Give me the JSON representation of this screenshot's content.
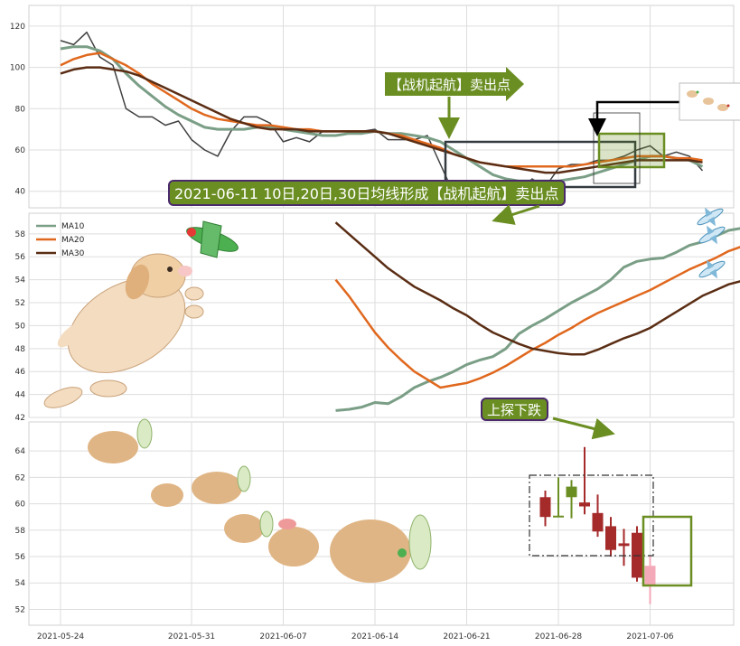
{
  "colors": {
    "ma10": "#7a9e86",
    "ma20": "#e0681e",
    "ma30": "#5a2d14",
    "close": "#404040",
    "callout_fill": "#6b8e23",
    "callout_border": "#4b2a6b",
    "bull": "#6b8e23",
    "bear": "#a52a2a",
    "pink": "#f4a9b8",
    "frame": "#333a40"
  },
  "x_ticks": [
    "2021-05-24",
    "2021-05-31",
    "2021-06-07",
    "2021-06-14",
    "2021-06-21",
    "2021-06-28",
    "2021-07-06"
  ],
  "annotations": {
    "sell_arrow_label": "【战机起航】卖出点",
    "sell_note": "2021-06-11 10日,20日,30日均线形成【战机起航】卖出点",
    "probe_label": "上探下跌"
  },
  "chart_data": [
    {
      "type": "line",
      "panel": "top",
      "x": [
        0,
        1,
        2,
        3,
        4,
        5,
        6,
        7,
        8,
        9,
        10,
        11,
        12,
        13,
        14,
        15,
        16,
        17,
        18,
        19,
        20,
        21,
        22,
        23,
        24,
        25,
        26,
        27,
        28,
        29,
        30,
        31,
        32,
        33,
        34,
        35,
        36,
        37,
        38,
        39,
        40,
        41,
        42,
        43,
        44,
        45,
        46,
        47,
        48,
        49
      ],
      "series": [
        {
          "name": "close",
          "values": [
            113,
            111,
            117,
            105,
            101,
            80,
            76,
            76,
            72,
            74,
            65,
            60,
            57,
            69,
            76,
            76,
            73,
            64,
            66,
            64,
            69,
            69,
            69,
            69,
            70,
            65,
            65,
            65,
            67,
            53,
            39,
            40,
            44,
            40,
            39,
            41,
            46,
            42,
            51,
            53,
            53,
            55,
            55,
            57,
            60,
            62,
            57,
            59,
            57,
            50
          ]
        },
        {
          "name": "MA10",
          "values": [
            109,
            110,
            110,
            108,
            104,
            97,
            91,
            86,
            81,
            77,
            74,
            71,
            70,
            70,
            70,
            71,
            71,
            70,
            69,
            68,
            67,
            67,
            68,
            68,
            69,
            68,
            68,
            67,
            66,
            64,
            60,
            56,
            52,
            48,
            46,
            45,
            45,
            45,
            45,
            46,
            47,
            49,
            51,
            53,
            55,
            57,
            57,
            56,
            55,
            52
          ]
        },
        {
          "name": "MA20",
          "values": [
            101,
            104,
            106,
            107,
            104,
            101,
            97,
            92,
            88,
            84,
            80,
            77,
            75,
            74,
            73,
            72,
            72,
            71,
            70,
            70,
            69,
            69,
            69,
            69,
            69,
            68,
            67,
            65,
            63,
            61,
            58,
            56,
            54,
            53,
            52,
            52,
            52,
            52,
            52,
            52,
            53,
            54,
            55,
            56,
            57,
            57,
            57,
            56,
            56,
            55
          ]
        },
        {
          "name": "MA30",
          "values": [
            97,
            99,
            100,
            100,
            99,
            98,
            96,
            93,
            90,
            87,
            84,
            81,
            78,
            75,
            73,
            71,
            70,
            70,
            70,
            69,
            69,
            69,
            69,
            69,
            69,
            68,
            66,
            64,
            62,
            60,
            58,
            56,
            54,
            53,
            52,
            51,
            50,
            49,
            49,
            50,
            51,
            52,
            53,
            54,
            55,
            55,
            55,
            55,
            55,
            54
          ]
        }
      ],
      "ylim": [
        32,
        130
      ],
      "y_ticks": [
        40,
        60,
        80,
        100,
        120
      ]
    },
    {
      "type": "line",
      "panel": "middle",
      "x_start_index": 21,
      "series": [
        {
          "name": "MA10",
          "values": [
            42.6,
            42.7,
            42.9,
            43.3,
            43.2,
            43.8,
            44.6,
            45.1,
            45.5,
            46.0,
            46.6,
            47.0,
            47.3,
            48.0,
            49.3,
            50.0,
            50.6,
            51.3,
            52.0,
            52.6,
            53.2,
            54.0,
            55.1,
            55.6,
            55.8,
            55.9,
            56.4,
            57.0,
            57.3,
            57.8,
            58.3,
            58.5,
            58.6
          ]
        },
        {
          "name": "MA20",
          "values": [
            54.0,
            52.6,
            51.0,
            49.4,
            48.1,
            47.0,
            46.0,
            45.3,
            44.6,
            44.8,
            45.0,
            45.4,
            45.9,
            46.5,
            47.2,
            47.9,
            48.5,
            49.2,
            49.8,
            50.5,
            51.1,
            51.6,
            52.1,
            52.6,
            53.1,
            53.7,
            54.3,
            54.9,
            55.4,
            55.9,
            56.5,
            56.9,
            57.3
          ]
        },
        {
          "name": "MA30",
          "values": [
            59.0,
            58.0,
            57.0,
            56.0,
            55.0,
            54.2,
            53.4,
            52.8,
            52.2,
            51.5,
            50.9,
            50.1,
            49.4,
            48.9,
            48.4,
            48.0,
            47.8,
            47.6,
            47.5,
            47.5,
            47.9,
            48.4,
            48.9,
            49.3,
            49.8,
            50.5,
            51.2,
            51.9,
            52.6,
            53.1,
            53.6,
            53.9,
            54.2
          ]
        }
      ],
      "legend": [
        "MA10",
        "MA20",
        "MA30"
      ],
      "legend_loc": "upper-left",
      "ylim": [
        42,
        59.8
      ],
      "y_ticks": [
        42,
        44,
        46,
        48,
        50,
        52,
        54,
        56,
        58
      ]
    },
    {
      "type": "candlestick",
      "panel": "bottom",
      "candles": [
        {
          "i": 37,
          "open": 60.5,
          "close": 59.0,
          "high": 61.0,
          "low": 58.3
        },
        {
          "i": 38,
          "open": 59.1,
          "close": 59.1,
          "high": 62.0,
          "low": 59.0
        },
        {
          "i": 39,
          "open": 60.5,
          "close": 61.3,
          "high": 61.8,
          "low": 58.9
        },
        {
          "i": 40,
          "open": 60.1,
          "close": 59.8,
          "high": 64.3,
          "low": 59.2
        },
        {
          "i": 41,
          "open": 59.3,
          "close": 57.9,
          "high": 60.7,
          "low": 57.5
        },
        {
          "i": 42,
          "open": 58.3,
          "close": 56.5,
          "high": 59.0,
          "low": 56.0
        },
        {
          "i": 43,
          "open": 57.0,
          "close": 56.8,
          "high": 58.1,
          "low": 55.3
        },
        {
          "i": 44,
          "open": 57.8,
          "close": 54.4,
          "high": 58.3,
          "low": 54.1
        },
        {
          "i": 45,
          "open": 53.8,
          "close": 55.3,
          "high": 56.1,
          "low": 52.4
        }
      ],
      "ylim": [
        50.8,
        66.2
      ],
      "y_ticks": [
        52,
        54,
        56,
        58,
        60,
        62,
        64
      ]
    }
  ]
}
